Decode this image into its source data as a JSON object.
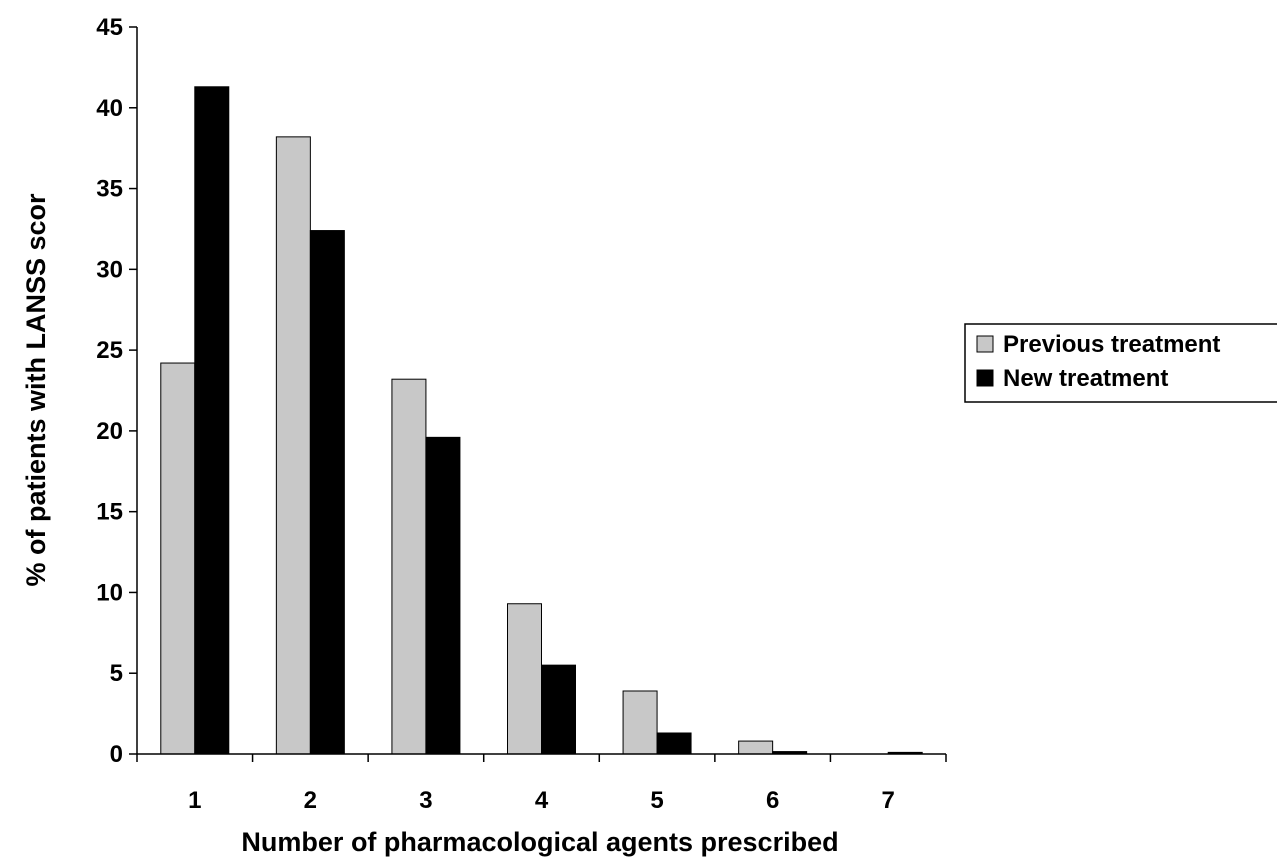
{
  "chart_data": {
    "type": "bar",
    "categories": [
      "1",
      "2",
      "3",
      "4",
      "5",
      "6",
      "7"
    ],
    "series": [
      {
        "name": "Previous treatment",
        "values": [
          24.2,
          38.2,
          23.2,
          9.3,
          3.9,
          0.8,
          0.0
        ],
        "color": "#c8c8c8"
      },
      {
        "name": "New treatment",
        "values": [
          41.3,
          32.4,
          19.6,
          5.5,
          1.3,
          0.15,
          0.1
        ],
        "color": "#000000"
      }
    ],
    "xlabel": "Number of pharmacological agents prescribed",
    "ylabel": "% of patients with LANSS scor",
    "ylim": [
      0,
      45
    ],
    "yticks": [
      "0",
      "5",
      "10",
      "15",
      "20",
      "25",
      "30",
      "35",
      "40",
      "45"
    ],
    "grid": false,
    "legend_position": "right"
  }
}
